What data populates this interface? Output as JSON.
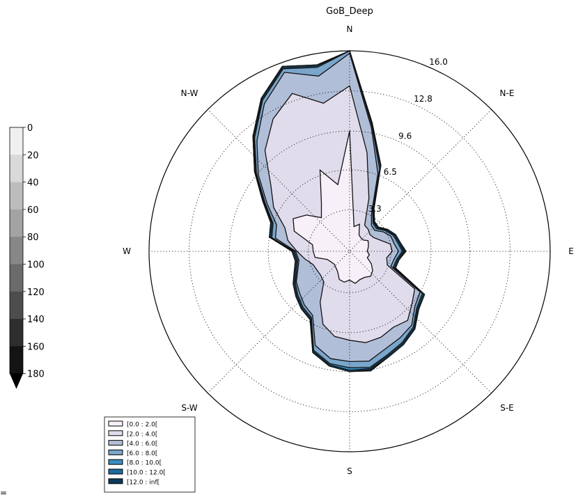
{
  "chart_data": {
    "type": "windrose",
    "title": "GoB_Deep",
    "directions": [
      "N",
      "N-E",
      "E",
      "S-E",
      "S",
      "S-W",
      "W",
      "N-W"
    ],
    "radial_ticks": [
      "3.3",
      "6.5",
      "9.6",
      "12.8",
      "16.0"
    ],
    "radial_values": [
      3.3,
      6.5,
      9.6,
      12.8,
      16.0
    ],
    "rmax": 16.0,
    "legend": [
      "[0.0 : 2.0[",
      "[2.0 : 4.0[",
      "[4.0 : 6.0[",
      "[6.0 : 8.0[",
      "[8.0 : 10.0[",
      "[10.0 : 12.0[",
      "[12.0 : inf["
    ],
    "series": [
      {
        "name": "[0.0 : 2.0[",
        "color": "#f7f0f8",
        "points": [
          [
            0,
            9.6
          ],
          [
            10,
            2.0
          ],
          [
            20,
            2.3
          ],
          [
            30,
            1.5
          ],
          [
            40,
            1.4
          ],
          [
            50,
            1.4
          ],
          [
            60,
            1.7
          ],
          [
            70,
            1.6
          ],
          [
            80,
            1.5
          ],
          [
            90,
            1.4
          ],
          [
            100,
            1.6
          ],
          [
            110,
            1.5
          ],
          [
            120,
            2.0
          ],
          [
            130,
            2.4
          ],
          [
            140,
            2.6
          ],
          [
            150,
            2.4
          ],
          [
            160,
            2.4
          ],
          [
            170,
            2.6
          ],
          [
            180,
            2.3
          ],
          [
            190,
            2.5
          ],
          [
            200,
            2.4
          ],
          [
            210,
            1.9
          ],
          [
            220,
            1.7
          ],
          [
            230,
            1.6
          ],
          [
            240,
            1.7
          ],
          [
            250,
            1.9
          ],
          [
            260,
            2.8
          ],
          [
            270,
            2.9
          ],
          [
            280,
            3.0
          ],
          [
            290,
            4.7
          ],
          [
            300,
            5.2
          ],
          [
            310,
            4.5
          ],
          [
            320,
            3.5
          ],
          [
            330,
            4.5
          ],
          [
            340,
            6.9
          ],
          [
            350,
            5.4
          ]
        ]
      },
      {
        "name": "[2.0 : 4.0[",
        "color": "#e1dcec",
        "points": [
          [
            0,
            13.2
          ],
          [
            10,
            8.0
          ],
          [
            20,
            4.5
          ],
          [
            30,
            2.4
          ],
          [
            40,
            2.3
          ],
          [
            50,
            2.1
          ],
          [
            60,
            2.2
          ],
          [
            70,
            2.6
          ],
          [
            80,
            3.3
          ],
          [
            90,
            3.4
          ],
          [
            100,
            3.0
          ],
          [
            110,
            3.2
          ],
          [
            120,
            6.0
          ],
          [
            130,
            6.5
          ],
          [
            140,
            7.2
          ],
          [
            150,
            7.0
          ],
          [
            160,
            7.3
          ],
          [
            170,
            7.4
          ],
          [
            180,
            7.1
          ],
          [
            190,
            6.9
          ],
          [
            200,
            6.2
          ],
          [
            210,
            4.7
          ],
          [
            220,
            3.2
          ],
          [
            230,
            3.0
          ],
          [
            240,
            3.0
          ],
          [
            250,
            3.1
          ],
          [
            260,
            3.6
          ],
          [
            270,
            4.2
          ],
          [
            280,
            5.0
          ],
          [
            290,
            5.5
          ],
          [
            300,
            7.0
          ],
          [
            310,
            8.2
          ],
          [
            320,
            10.5
          ],
          [
            330,
            12.2
          ],
          [
            340,
            13.4
          ],
          [
            350,
            12.0
          ]
        ]
      },
      {
        "name": "[4.0 : 6.0[",
        "color": "#b1bed8",
        "points": [
          [
            0,
            15.8
          ],
          [
            10,
            10.0
          ],
          [
            20,
            6.6
          ],
          [
            30,
            3.5
          ],
          [
            40,
            2.7
          ],
          [
            50,
            2.6
          ],
          [
            60,
            3.1
          ],
          [
            70,
            3.5
          ],
          [
            80,
            3.6
          ],
          [
            90,
            3.9
          ],
          [
            100,
            3.6
          ],
          [
            110,
            3.5
          ],
          [
            120,
            6.5
          ],
          [
            130,
            6.8
          ],
          [
            140,
            7.7
          ],
          [
            150,
            8.0
          ],
          [
            160,
            8.3
          ],
          [
            170,
            8.9
          ],
          [
            180,
            8.8
          ],
          [
            190,
            8.7
          ],
          [
            200,
            8.0
          ],
          [
            210,
            5.9
          ],
          [
            220,
            5.6
          ],
          [
            230,
            5.2
          ],
          [
            240,
            4.9
          ],
          [
            250,
            4.4
          ],
          [
            260,
            4.1
          ],
          [
            270,
            4.3
          ],
          [
            280,
            6.0
          ],
          [
            290,
            6.2
          ],
          [
            300,
            7.6
          ],
          [
            310,
            9.5
          ],
          [
            320,
            11.5
          ],
          [
            330,
            13.6
          ],
          [
            340,
            15.2
          ],
          [
            350,
            14.2
          ]
        ]
      },
      {
        "name": "[6.0 : 8.0[",
        "color": "#7aa6cb",
        "points": [
          [
            0,
            16.0
          ],
          [
            10,
            10.2
          ],
          [
            20,
            7.0
          ],
          [
            30,
            3.7
          ],
          [
            40,
            2.9
          ],
          [
            50,
            2.8
          ],
          [
            60,
            3.3
          ],
          [
            70,
            3.7
          ],
          [
            80,
            3.9
          ],
          [
            90,
            4.2
          ],
          [
            100,
            3.8
          ],
          [
            110,
            3.7
          ],
          [
            120,
            6.7
          ],
          [
            130,
            7.0
          ],
          [
            140,
            7.9
          ],
          [
            150,
            8.4
          ],
          [
            160,
            8.8
          ],
          [
            170,
            9.4
          ],
          [
            180,
            9.3
          ],
          [
            190,
            9.1
          ],
          [
            200,
            8.4
          ],
          [
            210,
            6.1
          ],
          [
            220,
            5.8
          ],
          [
            230,
            5.4
          ],
          [
            240,
            5.0
          ],
          [
            250,
            4.5
          ],
          [
            260,
            4.2
          ],
          [
            270,
            4.4
          ],
          [
            280,
            6.3
          ],
          [
            290,
            6.5
          ],
          [
            300,
            7.8
          ],
          [
            310,
            9.7
          ],
          [
            320,
            11.8
          ],
          [
            330,
            13.9
          ],
          [
            340,
            15.5
          ],
          [
            350,
            14.9
          ]
        ]
      },
      {
        "name": "[8.0 : 10.0[",
        "color": "#3b8cc0",
        "points": [
          [
            0,
            16.0
          ],
          [
            10,
            10.3
          ],
          [
            20,
            7.2
          ],
          [
            30,
            3.8
          ],
          [
            40,
            3.0
          ],
          [
            50,
            2.9
          ],
          [
            60,
            3.4
          ],
          [
            70,
            3.8
          ],
          [
            80,
            4.0
          ],
          [
            90,
            4.3
          ],
          [
            100,
            3.9
          ],
          [
            110,
            3.8
          ],
          [
            120,
            6.8
          ],
          [
            130,
            7.1
          ],
          [
            140,
            8.0
          ],
          [
            150,
            8.5
          ],
          [
            160,
            8.9
          ],
          [
            170,
            9.5
          ],
          [
            180,
            9.5
          ],
          [
            190,
            9.2
          ],
          [
            200,
            8.5
          ],
          [
            210,
            6.2
          ],
          [
            220,
            5.9
          ],
          [
            230,
            5.5
          ],
          [
            240,
            5.1
          ],
          [
            250,
            4.6
          ],
          [
            260,
            4.3
          ],
          [
            270,
            4.5
          ],
          [
            280,
            6.4
          ],
          [
            290,
            6.6
          ],
          [
            300,
            7.9
          ],
          [
            310,
            9.8
          ],
          [
            320,
            11.9
          ],
          [
            330,
            14.0
          ],
          [
            340,
            15.6
          ],
          [
            350,
            15.0
          ]
        ]
      },
      {
        "name": "[10.0 : 12.0[",
        "color": "#1c6aa0",
        "points": [
          [
            0,
            16.0
          ],
          [
            10,
            10.3
          ],
          [
            20,
            7.3
          ],
          [
            30,
            3.8
          ],
          [
            40,
            3.0
          ],
          [
            50,
            3.0
          ],
          [
            60,
            3.5
          ],
          [
            70,
            3.9
          ],
          [
            80,
            4.1
          ],
          [
            90,
            4.4
          ],
          [
            100,
            4.0
          ],
          [
            110,
            3.9
          ],
          [
            120,
            6.9
          ],
          [
            130,
            7.2
          ],
          [
            140,
            8.1
          ],
          [
            150,
            8.6
          ],
          [
            160,
            9.0
          ],
          [
            170,
            9.6
          ],
          [
            180,
            9.6
          ],
          [
            190,
            9.3
          ],
          [
            200,
            8.6
          ],
          [
            210,
            6.3
          ],
          [
            220,
            6.0
          ],
          [
            230,
            5.6
          ],
          [
            240,
            5.2
          ],
          [
            250,
            4.7
          ],
          [
            260,
            4.4
          ],
          [
            270,
            4.6
          ],
          [
            280,
            6.5
          ],
          [
            290,
            6.7
          ],
          [
            300,
            8.0
          ],
          [
            310,
            9.9
          ],
          [
            320,
            12.0
          ],
          [
            330,
            14.1
          ],
          [
            340,
            15.7
          ],
          [
            350,
            15.1
          ]
        ]
      },
      {
        "name": "[12.0 : inf[",
        "color": "#0d3a5c",
        "points": [
          [
            0,
            16.0
          ],
          [
            10,
            10.4
          ],
          [
            20,
            7.3
          ],
          [
            30,
            3.9
          ],
          [
            40,
            3.1
          ],
          [
            50,
            3.0
          ],
          [
            60,
            3.5
          ],
          [
            70,
            3.9
          ],
          [
            80,
            4.1
          ],
          [
            90,
            4.5
          ],
          [
            100,
            4.0
          ],
          [
            110,
            3.9
          ],
          [
            120,
            6.9
          ],
          [
            130,
            7.2
          ],
          [
            140,
            8.1
          ],
          [
            150,
            8.6
          ],
          [
            160,
            9.0
          ],
          [
            170,
            9.7
          ],
          [
            180,
            9.6
          ],
          [
            190,
            9.3
          ],
          [
            200,
            8.6
          ],
          [
            210,
            6.3
          ],
          [
            220,
            6.0
          ],
          [
            230,
            5.6
          ],
          [
            240,
            5.2
          ],
          [
            250,
            4.7
          ],
          [
            260,
            4.4
          ],
          [
            270,
            4.6
          ],
          [
            280,
            6.5
          ],
          [
            290,
            6.7
          ],
          [
            300,
            8.0
          ],
          [
            310,
            9.9
          ],
          [
            320,
            12.0
          ],
          [
            330,
            14.1
          ],
          [
            340,
            15.7
          ],
          [
            350,
            15.1
          ]
        ]
      }
    ]
  },
  "colorbar": {
    "tick_labels": [
      "0",
      "20",
      "40",
      "60",
      "80",
      "100",
      "120",
      "140",
      "160",
      "180"
    ],
    "colors": [
      "#f0f0f0",
      "#d9d9d9",
      "#bdbdbd",
      "#a3a3a3",
      "#878787",
      "#6b6b6b",
      "#4d4d4d",
      "#2e2e2e",
      "#141414",
      "#000000"
    ]
  },
  "stray_text": "="
}
